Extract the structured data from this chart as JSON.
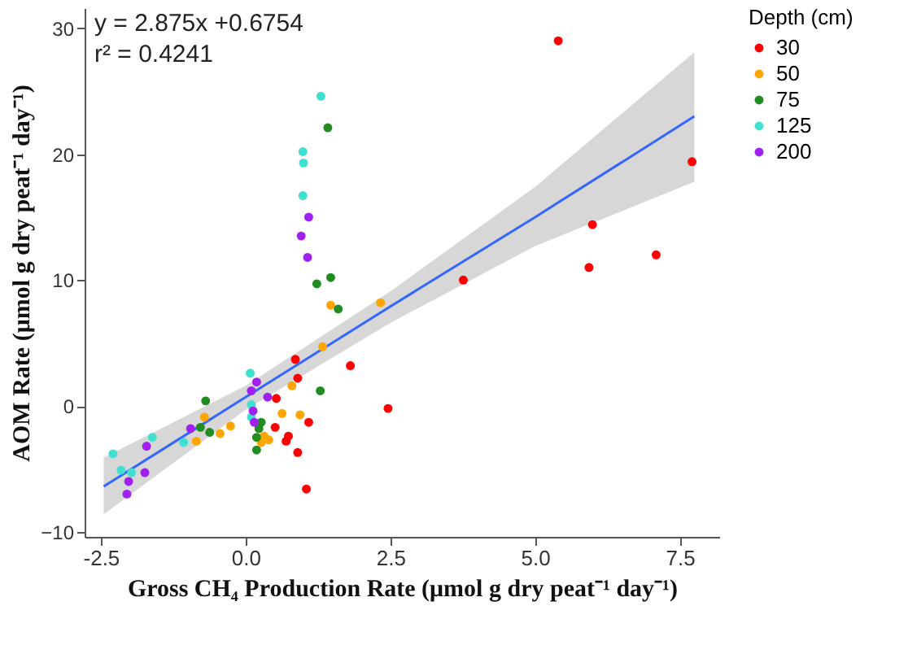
{
  "chart_data": {
    "type": "scatter",
    "xlabel": "Gross CH₄ Production Rate (μmol g dry peat⁻¹ day⁻¹)",
    "ylabel": "AOM Rate (μmol g dry peat⁻¹ day⁻¹)",
    "legend_title": "Depth (cm)",
    "legend": "right",
    "grid": false,
    "marker": "circle",
    "annotations": [
      "y = 2.875x +0.6754",
      "r² = 0.4241"
    ],
    "xlim": [
      -2.78,
      8.18
    ],
    "ylim": [
      -10.4,
      31.6
    ],
    "xticks": [
      {
        "value": -2.5,
        "label": "-2.5"
      },
      {
        "value": 0,
        "label": "0.0"
      },
      {
        "value": 2.5,
        "label": "2.5"
      },
      {
        "value": 5,
        "label": "5.0"
      },
      {
        "value": 7.5,
        "label": "7.5"
      }
    ],
    "yticks": [
      -10,
      0,
      10,
      20,
      30
    ],
    "series": [
      {
        "type": "line",
        "marker": "none",
        "color": "#3366ff",
        "x": [
          -2.45,
          0,
          2.5,
          5,
          7.75
        ],
        "values": [
          -6.4,
          0.7,
          7.9,
          15.0,
          23.0
        ],
        "lower": [
          -8.6,
          -0.3,
          6.6,
          12.7,
          17.8
        ],
        "upper": [
          -4.1,
          1.6,
          9.1,
          17.4,
          28.1
        ]
      },
      {
        "name": "30",
        "color": "#ff0000",
        "x": [
          5.4,
          7.71,
          5.99,
          5.93,
          7.09,
          3.76,
          1.81,
          2.46,
          0.86,
          0.9,
          0.53,
          1.09,
          0.51,
          0.74,
          0.7,
          0.9,
          1.05
        ],
        "values": [
          29.0,
          19.4,
          14.4,
          11.0,
          12.0,
          10.0,
          3.2,
          -0.2,
          3.7,
          2.2,
          0.6,
          -1.3,
          -1.7,
          -2.4,
          -2.8,
          -3.7,
          -6.6
        ]
      },
      {
        "name": "50",
        "color": "#ffa500",
        "x": [
          1.47,
          2.33,
          1.33,
          0.8,
          0.94,
          0.63,
          -0.71,
          -0.26,
          -0.44,
          -0.85,
          0.27,
          0.4,
          0.32
        ],
        "values": [
          8.0,
          8.2,
          4.7,
          1.6,
          -0.7,
          -0.6,
          -0.9,
          -1.6,
          -2.2,
          -2.8,
          -2.9,
          -2.7,
          -2.4
        ]
      },
      {
        "name": "75",
        "color": "#228b22",
        "x": [
          1.42,
          1.23,
          1.47,
          1.6,
          1.29,
          -0.69,
          -0.78,
          -0.62,
          0.27,
          0.23,
          0.19,
          0.19
        ],
        "values": [
          22.1,
          9.7,
          10.2,
          7.7,
          1.2,
          0.4,
          -1.7,
          -2.1,
          -1.3,
          -1.8,
          -2.5,
          -3.5
        ]
      },
      {
        "name": "125",
        "color": "#40e0d0",
        "x": [
          1.3,
          0.99,
          1.0,
          0.99,
          0.08,
          -2.29,
          -2.15,
          -1.97,
          -1.61,
          -1.07,
          0.1,
          0.1
        ],
        "values": [
          24.6,
          20.2,
          19.3,
          16.7,
          2.6,
          -3.8,
          -5.1,
          -5.3,
          -2.5,
          -2.9,
          0.1,
          -0.9
        ]
      },
      {
        "name": "200",
        "color": "#a020f0",
        "x": [
          1.09,
          0.96,
          1.07,
          0.19,
          0.1,
          0.13,
          0.15,
          -0.95,
          -1.71,
          -1.74,
          -2.02,
          -2.05,
          0.38
        ],
        "values": [
          15.0,
          13.5,
          11.8,
          1.9,
          1.2,
          -0.4,
          -1.3,
          -1.8,
          -3.2,
          -5.3,
          -6.0,
          -7.0,
          0.7
        ]
      }
    ]
  }
}
